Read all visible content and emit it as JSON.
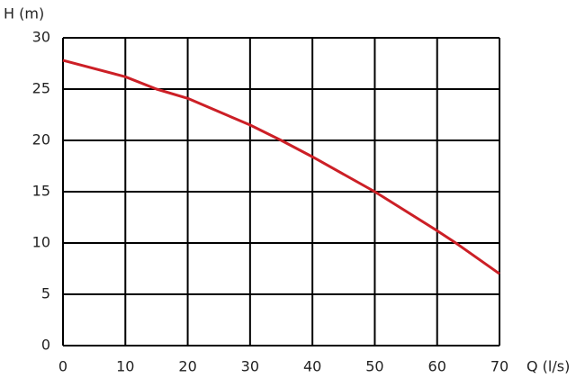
{
  "chart_data": {
    "type": "line",
    "x_label": "Q (l/s)",
    "y_label": "H (m)",
    "x": [
      0,
      10,
      15,
      20,
      30,
      35,
      40,
      50,
      60,
      63,
      70
    ],
    "series": [
      {
        "color": "#cc1f26",
        "values": [
          27.8,
          26.2,
          25,
          24.1,
          21.5,
          20,
          18.4,
          15,
          11.2,
          10,
          7
        ]
      }
    ],
    "xlim": [
      0,
      70
    ],
    "xticks": [
      0,
      10,
      20,
      30,
      40,
      50,
      60,
      70
    ],
    "ylim": [
      0,
      30
    ],
    "yticks": [
      0,
      5,
      10,
      15,
      20,
      25,
      30
    ],
    "grid": true
  }
}
